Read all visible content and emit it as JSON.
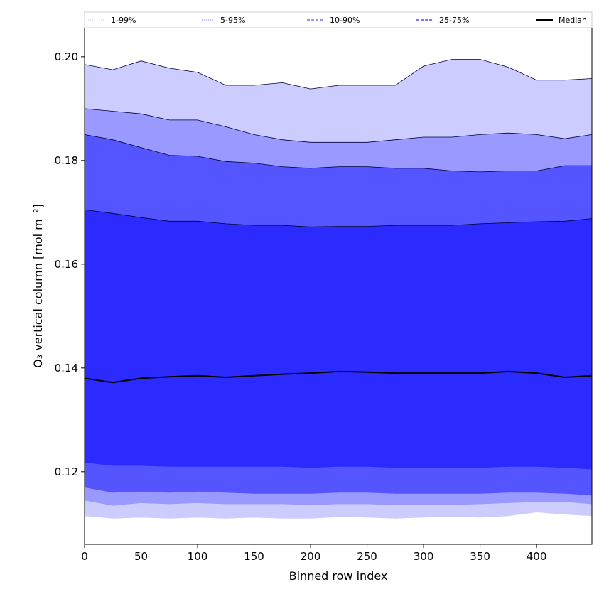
{
  "chart_data": {
    "type": "area",
    "xlabel": "Binned row index",
    "ylabel": "O₃ vertical column [mol m⁻²]",
    "xlim": [
      0,
      449
    ],
    "ylim": [
      0.106,
      0.2056
    ],
    "xticks": [
      0,
      50,
      100,
      150,
      200,
      250,
      300,
      350,
      400
    ],
    "yticks": [
      0.12,
      0.14,
      0.16,
      0.18,
      0.2
    ],
    "ytick_labels": [
      "0.12",
      "0.14",
      "0.16",
      "0.18",
      "0.20"
    ],
    "grid": false,
    "legend_position": "top",
    "colors": {
      "band_1_99": "#ccccff",
      "band_5_95": "#9999ff",
      "band_10_90": "#5555ff",
      "band_25_75": "#2b2bff",
      "median": "#000000"
    },
    "x": [
      0,
      25,
      50,
      75,
      100,
      125,
      150,
      175,
      200,
      225,
      250,
      275,
      300,
      325,
      350,
      375,
      400,
      425,
      449
    ],
    "bands": [
      {
        "name": "1-99%",
        "lower": [
          0.1115,
          0.111,
          0.1112,
          0.111,
          0.1112,
          0.111,
          0.1112,
          0.111,
          0.111,
          0.1113,
          0.1112,
          0.111,
          0.1112,
          0.1113,
          0.1112,
          0.1115,
          0.1122,
          0.1118,
          0.1115
        ],
        "upper": [
          0.1985,
          0.1975,
          0.1992,
          0.1978,
          0.197,
          0.1945,
          0.1945,
          0.195,
          0.1938,
          0.1945,
          0.1945,
          0.1945,
          0.1982,
          0.1995,
          0.1995,
          0.198,
          0.1955,
          0.1955,
          0.1958
        ]
      },
      {
        "name": "5-95%",
        "lower": [
          0.1145,
          0.1135,
          0.114,
          0.1138,
          0.114,
          0.1138,
          0.1138,
          0.1138,
          0.1136,
          0.1138,
          0.1138,
          0.1136,
          0.1136,
          0.1136,
          0.1138,
          0.114,
          0.1142,
          0.1142,
          0.1138
        ],
        "upper": [
          0.19,
          0.1895,
          0.189,
          0.1878,
          0.1878,
          0.1865,
          0.185,
          0.184,
          0.1835,
          0.1835,
          0.1835,
          0.184,
          0.1845,
          0.1845,
          0.185,
          0.1853,
          0.185,
          0.1842,
          0.185
        ]
      },
      {
        "name": "10-90%",
        "lower": [
          0.117,
          0.116,
          0.1162,
          0.116,
          0.1162,
          0.116,
          0.1158,
          0.1158,
          0.1158,
          0.116,
          0.116,
          0.1158,
          0.1158,
          0.1158,
          0.1158,
          0.116,
          0.116,
          0.1158,
          0.1155
        ],
        "upper": [
          0.185,
          0.184,
          0.1825,
          0.181,
          0.1808,
          0.1798,
          0.1795,
          0.1788,
          0.1785,
          0.1788,
          0.1788,
          0.1785,
          0.1785,
          0.178,
          0.1778,
          0.178,
          0.178,
          0.179,
          0.179
        ]
      },
      {
        "name": "25-75%",
        "lower": [
          0.1218,
          0.1212,
          0.1212,
          0.121,
          0.121,
          0.121,
          0.121,
          0.121,
          0.1208,
          0.121,
          0.121,
          0.1208,
          0.1208,
          0.1208,
          0.1208,
          0.121,
          0.121,
          0.1208,
          0.1205
        ],
        "upper": [
          0.1705,
          0.1698,
          0.169,
          0.1683,
          0.1683,
          0.1678,
          0.1675,
          0.1675,
          0.1672,
          0.1673,
          0.1673,
          0.1675,
          0.1675,
          0.1675,
          0.1678,
          0.168,
          0.1682,
          0.1683,
          0.1688
        ]
      }
    ],
    "series": [
      {
        "name": "Median",
        "values": [
          0.138,
          0.1372,
          0.138,
          0.1383,
          0.1385,
          0.1382,
          0.1385,
          0.1388,
          0.139,
          0.1393,
          0.1392,
          0.139,
          0.139,
          0.139,
          0.139,
          0.1393,
          0.139,
          0.1382,
          0.1385
        ]
      }
    ],
    "legend": [
      {
        "label": "1-99%",
        "color": "#ccccff",
        "style": "dotted"
      },
      {
        "label": "5-95%",
        "color": "#9999ff",
        "style": "dotted"
      },
      {
        "label": "10-90%",
        "color": "#5555ff",
        "style": "dashed"
      },
      {
        "label": "25-75%",
        "color": "#2b2bff",
        "style": "dashed"
      },
      {
        "label": "Median",
        "color": "#000000",
        "style": "solid"
      }
    ]
  }
}
